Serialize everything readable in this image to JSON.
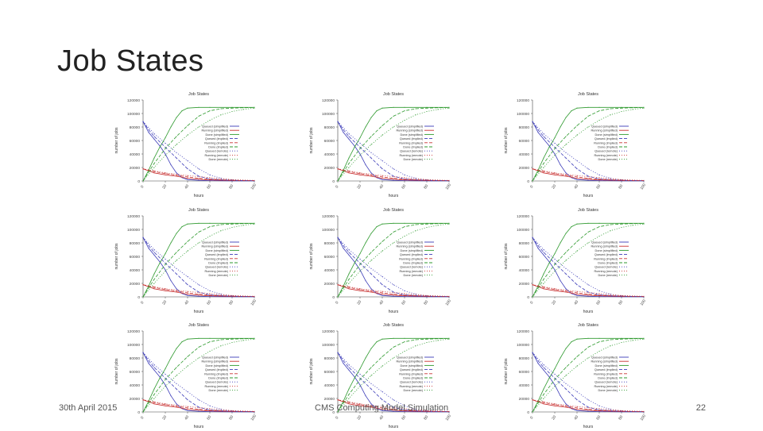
{
  "slide": {
    "title": "Job States",
    "footer_left": "30th April 2015",
    "footer_center": "CMS Computing Model Simulation",
    "page_number": "22"
  },
  "colors": {
    "queued": "#3b3bb8",
    "running": "#c83232",
    "done": "#2f9a2f"
  },
  "chart_data": [
    {
      "type": "line",
      "title": "Job States",
      "xlabel": "hours",
      "ylabel": "number of jobs",
      "xlim": [
        0,
        100
      ],
      "ylim": [
        0,
        120000
      ],
      "yticks": [
        0,
        20000,
        40000,
        60000,
        80000,
        100000,
        120000
      ],
      "ytick_labels": [
        "0",
        "20000",
        "40000",
        "60000",
        "80000",
        "100000",
        "120000"
      ],
      "xticks": [
        0,
        20,
        40,
        60,
        80,
        100
      ],
      "xtick_labels": [
        "0",
        "20",
        "40",
        "60",
        "80",
        "100"
      ],
      "legend_position": "center-right",
      "grid": false,
      "series": [
        {
          "name": "Queued (simplified)",
          "color": "#3b3bb8",
          "style": "solid",
          "x": [
            0,
            5,
            10,
            15,
            20,
            25,
            30,
            35,
            40,
            50,
            60,
            80,
            100
          ],
          "y": [
            88000,
            72000,
            62000,
            52000,
            40000,
            24000,
            12000,
            5000,
            2000,
            1000,
            500,
            200,
            100
          ]
        },
        {
          "name": "Running (simplified)",
          "color": "#c83232",
          "style": "solid",
          "x": [
            0,
            5,
            10,
            20,
            30,
            40,
            50,
            60,
            80,
            100
          ],
          "y": [
            18000,
            15000,
            12000,
            9000,
            7000,
            4000,
            2500,
            1500,
            800,
            500
          ]
        },
        {
          "name": "Done (simplified)",
          "color": "#2f9a2f",
          "style": "solid",
          "x": [
            0,
            5,
            10,
            15,
            20,
            25,
            30,
            35,
            40,
            50,
            60,
            80,
            100
          ],
          "y": [
            0,
            16000,
            34000,
            50000,
            64000,
            80000,
            94000,
            104000,
            108000,
            109000,
            109000,
            109000,
            109000
          ]
        },
        {
          "name": "Queued (implied)",
          "color": "#3b3bb8",
          "style": "dashed",
          "x": [
            0,
            5,
            10,
            20,
            30,
            40,
            50,
            60,
            80,
            100
          ],
          "y": [
            88000,
            76000,
            66000,
            50000,
            34000,
            18000,
            7000,
            3000,
            1000,
            300
          ]
        },
        {
          "name": "Running (implied)",
          "color": "#c83232",
          "style": "dashed",
          "x": [
            0,
            10,
            20,
            30,
            40,
            50,
            60,
            80,
            100
          ],
          "y": [
            18000,
            14000,
            11000,
            8500,
            6000,
            4000,
            2500,
            1000,
            500
          ]
        },
        {
          "name": "Done (implied)",
          "color": "#2f9a2f",
          "style": "dashed",
          "x": [
            0,
            10,
            20,
            30,
            40,
            50,
            60,
            70,
            80,
            100
          ],
          "y": [
            0,
            26000,
            48000,
            66000,
            82000,
            96000,
            104000,
            107000,
            108000,
            109000
          ]
        },
        {
          "name": "Queued (remote)",
          "color": "#3b3bb8",
          "style": "dotted",
          "x": [
            0,
            10,
            20,
            30,
            40,
            50,
            60,
            70,
            80,
            100
          ],
          "y": [
            88000,
            70000,
            56000,
            42000,
            30000,
            18000,
            9000,
            4000,
            1500,
            400
          ]
        },
        {
          "name": "Running (remote)",
          "color": "#c83232",
          "style": "dotted",
          "x": [
            0,
            10,
            20,
            30,
            40,
            60,
            80,
            100
          ],
          "y": [
            18000,
            15000,
            12000,
            10000,
            8000,
            5000,
            2000,
            800
          ]
        },
        {
          "name": "Done (remote)",
          "color": "#2f9a2f",
          "style": "dotted",
          "x": [
            0,
            10,
            20,
            30,
            40,
            50,
            60,
            70,
            80,
            90,
            100
          ],
          "y": [
            0,
            20000,
            38000,
            54000,
            68000,
            80000,
            90000,
            98000,
            103000,
            106000,
            108000
          ]
        }
      ]
    }
  ]
}
